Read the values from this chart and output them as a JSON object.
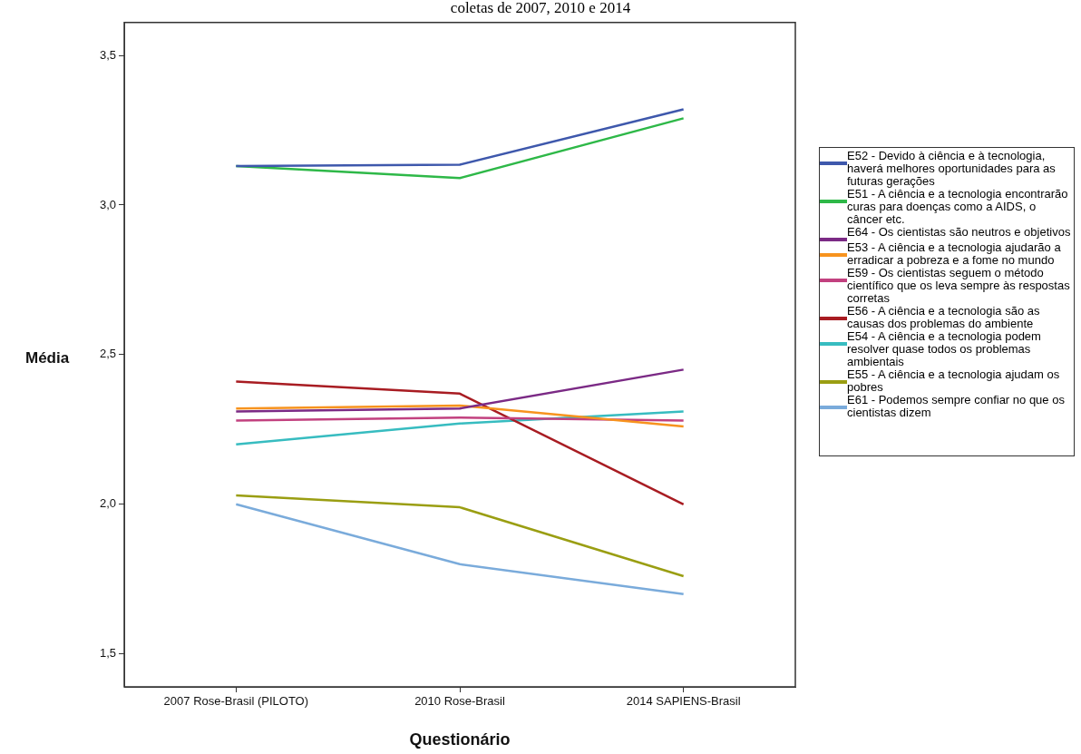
{
  "chart_data": {
    "type": "line",
    "title": "coletas de 2007, 2010 e 2014",
    "xlabel": "Questionário",
    "ylabel": "Média",
    "categories": [
      "2007 Rose-Brasil (PILOTO)",
      "2010 Rose-Brasil",
      "2014 SAPIENS-Brasil"
    ],
    "ylim": [
      1.39,
      3.61
    ],
    "yticks": [
      {
        "value": 1.5,
        "label": "1,5"
      },
      {
        "value": 2.0,
        "label": "2,0"
      },
      {
        "value": 2.5,
        "label": "2,5"
      },
      {
        "value": 3.0,
        "label": "3,0"
      },
      {
        "value": 3.5,
        "label": "3,5"
      }
    ],
    "grid": false,
    "legend": "right",
    "marker": "none",
    "line_style": "solid",
    "series": [
      {
        "name": "E52 - Devido à ciência e à tecnologia, haverá melhores oportunidades para as futuras gerações",
        "color": "#3e58ac",
        "values": [
          3.13,
          3.135,
          3.32
        ]
      },
      {
        "name": "E51 - A ciência e a tecnologia encontrarão curas para doenças como a AIDS, o câncer etc.",
        "color": "#2eb848",
        "values": [
          3.13,
          3.09,
          3.29
        ]
      },
      {
        "name": "E64 - Os cientistas são neutros e objetivos",
        "color": "#7b2a85",
        "values": [
          2.31,
          2.32,
          2.45
        ]
      },
      {
        "name": "E53 - A ciência e a tecnologia ajudarão a erradicar a pobreza e a fome no mundo",
        "color": "#f7931e",
        "values": [
          2.32,
          2.33,
          2.26
        ]
      },
      {
        "name": "E59 - Os cientistas seguem o método científico que os leva sempre às respostas corretas",
        "color": "#c2417f",
        "values": [
          2.28,
          2.29,
          2.28
        ]
      },
      {
        "name": "E56 - A ciência e a tecnologia são as causas dos problemas do ambiente",
        "color": "#a81c22",
        "values": [
          2.41,
          2.37,
          2.0
        ]
      },
      {
        "name": "E54 - A ciência e a tecnologia podem resolver quase todos os problemas ambientais",
        "color": "#37bcc0",
        "values": [
          2.2,
          2.27,
          2.31
        ]
      },
      {
        "name": "E55 - A ciência e a tecnologia ajudam os pobres",
        "color": "#9a9e12",
        "values": [
          2.03,
          1.99,
          1.76
        ]
      },
      {
        "name": "E61 - Podemos sempre confiar no que os cientistas dizem",
        "color": "#7aabdb",
        "values": [
          2.0,
          1.8,
          1.7
        ]
      }
    ]
  }
}
